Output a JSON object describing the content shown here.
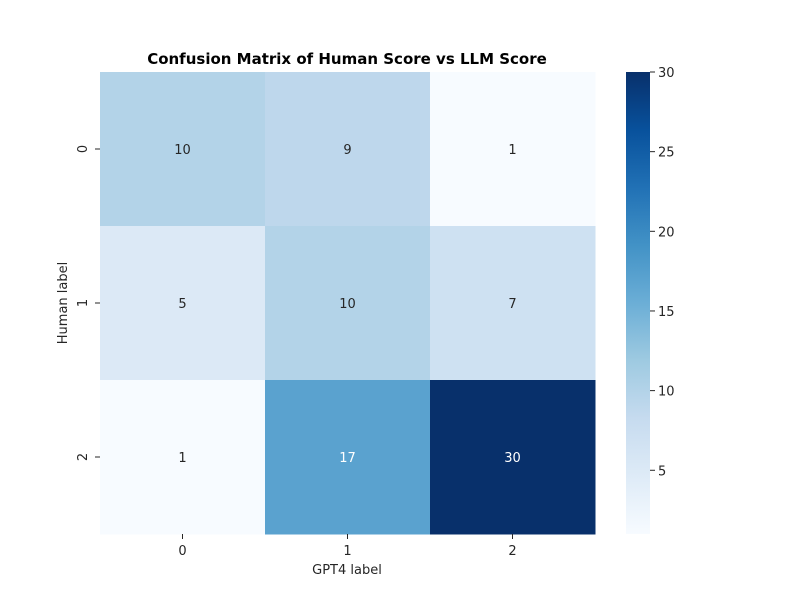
{
  "chart_data": {
    "type": "heatmap",
    "title": "Confusion Matrix of Human Score vs LLM Score",
    "xlabel": "GPT4 label",
    "ylabel": "Human label",
    "x_categories": [
      "0",
      "1",
      "2"
    ],
    "y_categories": [
      "0",
      "1",
      "2"
    ],
    "values": [
      [
        10,
        9,
        1
      ],
      [
        5,
        10,
        7
      ],
      [
        1,
        17,
        30
      ]
    ],
    "annotations": true,
    "colormap": "Blues",
    "colorbar": {
      "vmin": 1,
      "vmax": 30,
      "ticks": [
        "5",
        "10",
        "15",
        "20",
        "25",
        "30"
      ]
    },
    "legend": "none",
    "grid": false
  }
}
